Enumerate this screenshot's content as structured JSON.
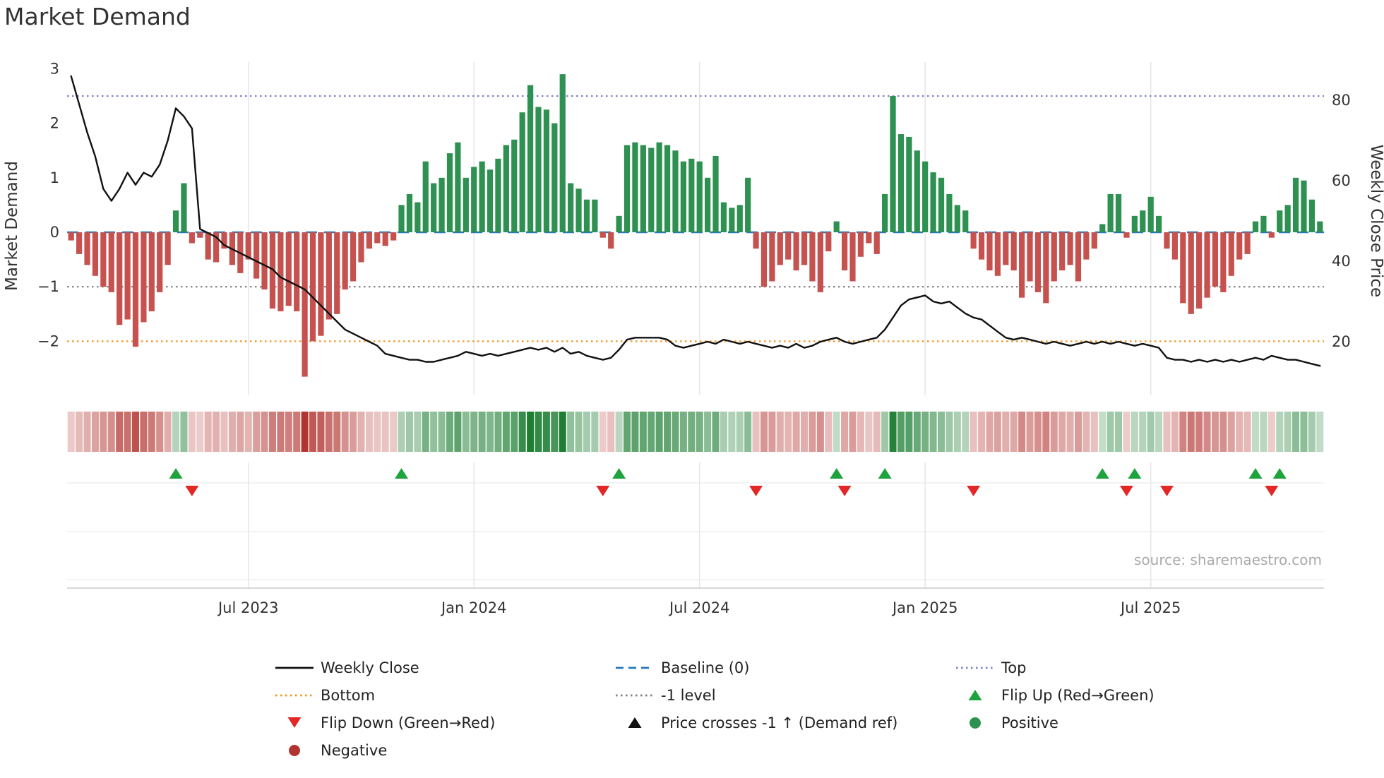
{
  "title": "Market Demand",
  "source_text": "source: sharemaestro.com",
  "axes": {
    "left_label": "Market Demand",
    "right_label": "Weekly Close Price",
    "left_ticks": [
      {
        "label": "3",
        "value": 3
      },
      {
        "label": "2",
        "value": 2
      },
      {
        "label": "1",
        "value": 1
      },
      {
        "label": "0",
        "value": 0
      },
      {
        "label": "−1",
        "value": -1
      },
      {
        "label": "−2",
        "value": -2
      }
    ],
    "right_ticks": [
      {
        "label": "80",
        "value": 80
      },
      {
        "label": "60",
        "value": 60
      },
      {
        "label": "40",
        "value": 40
      },
      {
        "label": "20",
        "value": 20
      }
    ],
    "x_ticks": [
      {
        "label": "Jul 2023",
        "index": 22
      },
      {
        "label": "Jan 2024",
        "index": 50
      },
      {
        "label": "Jul 2024",
        "index": 78
      },
      {
        "label": "Jan 2025",
        "index": 106
      },
      {
        "label": "Jul 2025",
        "index": 134
      }
    ]
  },
  "reference_lines": [
    {
      "name": "top",
      "label": "Top",
      "value": 2.5,
      "color": "#7b80cf",
      "dash": "2.5 4.5",
      "width": 2.2
    },
    {
      "name": "minus-one",
      "label": "-1 level",
      "value": -1,
      "color": "#7f7f7f",
      "dash": "2.5 4.5",
      "width": 2.2
    },
    {
      "name": "bottom",
      "label": "Bottom",
      "value": -2,
      "color": "#f5941e",
      "dash": "2.5 4.5",
      "width": 2.2
    },
    {
      "name": "baseline",
      "label": "Baseline (0)",
      "value": 0,
      "color": "#2878b8",
      "dash": "16 10",
      "width": 2.4
    }
  ],
  "colors": {
    "positive_bar": "#2e9151",
    "negative_bar": "#c5524f",
    "close_line": "#111111",
    "flip_up": "#1fa33c",
    "flip_down": "#e32726",
    "grid": "#e6e6e6",
    "axis_text": "#333333",
    "source_text": "#a9a9a9",
    "heat_green": [
      30,
      126,
      52
    ],
    "heat_red": [
      178,
      52,
      48
    ]
  },
  "legend": {
    "items": [
      {
        "label": "Weekly Close",
        "swatch": "line",
        "dash": "solid",
        "color": "#111111",
        "icon": "weekly-close-line-icon"
      },
      {
        "label": "Baseline (0)",
        "swatch": "line",
        "dash": "dashed",
        "color": "#2878b8",
        "icon": "baseline-line-icon"
      },
      {
        "label": "Top",
        "swatch": "line",
        "dash": "dotted",
        "color": "#7b80cf",
        "icon": "top-line-icon"
      },
      {
        "label": "Bottom",
        "swatch": "line",
        "dash": "dotted",
        "color": "#f5941e",
        "icon": "bottom-line-icon"
      },
      {
        "label": "-1 level",
        "swatch": "line",
        "dash": "dotted",
        "color": "#7f7f7f",
        "icon": "minus-one-line-icon"
      },
      {
        "label": "Flip Up (Red→Green)",
        "swatch": "triangle-up",
        "color": "#1fa33c",
        "icon": "flip-up-triangle-icon"
      },
      {
        "label": "Flip Down (Green→Red)",
        "swatch": "triangle-down",
        "color": "#e32726",
        "icon": "flip-down-triangle-icon"
      },
      {
        "label": "Price crosses -1 ↑ (Demand ref)",
        "swatch": "triangle-up",
        "color": "#111111",
        "icon": "price-cross-triangle-icon"
      },
      {
        "label": "Positive",
        "swatch": "circle",
        "color": "#2e9151",
        "icon": "positive-dot-icon"
      },
      {
        "label": "Negative",
        "swatch": "circle",
        "color": "#b23430",
        "icon": "negative-dot-icon"
      }
    ]
  },
  "chart_data": {
    "type": "bar",
    "title": "Market Demand",
    "x_unit": "week",
    "ylabel_left": "Market Demand",
    "ylabel_right": "Weekly Close Price",
    "left_ylim": [
      -3,
      3.1
    ],
    "right_ylim": [
      6,
      93
    ],
    "grid": "vertical-only",
    "legend_position": "bottom",
    "demand": [
      -0.15,
      -0.4,
      -0.6,
      -0.8,
      -1.0,
      -1.1,
      -1.7,
      -1.6,
      -2.1,
      -1.65,
      -1.45,
      -1.1,
      -0.6,
      0.4,
      0.9,
      -0.2,
      -0.1,
      -0.5,
      -0.55,
      -0.3,
      -0.6,
      -0.75,
      -0.5,
      -0.85,
      -1.05,
      -1.4,
      -1.45,
      -1.35,
      -1.45,
      -2.65,
      -2.0,
      -1.9,
      -1.6,
      -1.5,
      -1.05,
      -0.9,
      -0.55,
      -0.3,
      -0.2,
      -0.25,
      -0.15,
      0.5,
      0.7,
      0.55,
      1.3,
      0.9,
      1.0,
      1.45,
      1.65,
      1.0,
      1.2,
      1.3,
      1.15,
      1.35,
      1.6,
      1.7,
      2.2,
      2.7,
      2.3,
      2.25,
      2.0,
      2.9,
      0.9,
      0.8,
      0.6,
      0.6,
      -0.1,
      -0.3,
      0.3,
      1.6,
      1.65,
      1.6,
      1.55,
      1.65,
      1.6,
      1.5,
      1.3,
      1.35,
      1.3,
      1.0,
      1.4,
      0.55,
      0.45,
      0.5,
      1.0,
      -0.3,
      -1.0,
      -0.9,
      -0.6,
      -0.5,
      -0.7,
      -0.6,
      -0.9,
      -1.1,
      -0.35,
      0.2,
      -0.7,
      -0.9,
      -0.45,
      -0.2,
      -0.4,
      0.7,
      2.5,
      1.8,
      1.75,
      1.5,
      1.3,
      1.1,
      1.0,
      0.7,
      0.5,
      0.4,
      -0.3,
      -0.5,
      -0.7,
      -0.8,
      -0.6,
      -0.7,
      -1.2,
      -0.9,
      -1.1,
      -1.3,
      -0.9,
      -0.7,
      -0.6,
      -0.9,
      -0.5,
      -0.3,
      0.15,
      0.7,
      0.7,
      -0.1,
      0.3,
      0.4,
      0.65,
      0.3,
      -0.3,
      -0.5,
      -1.3,
      -1.5,
      -1.4,
      -1.2,
      -1.0,
      -1.1,
      -0.8,
      -0.5,
      -0.4,
      0.2,
      0.3,
      -0.1,
      0.4,
      0.5,
      1.0,
      0.95,
      0.6,
      0.2
    ],
    "weekly_close": [
      86,
      79,
      72,
      66,
      58,
      55,
      58,
      62,
      59,
      62,
      61,
      64,
      70,
      78,
      76,
      73,
      48,
      47,
      46,
      44,
      43,
      42,
      41,
      40,
      39,
      38,
      36,
      35,
      34,
      33,
      31,
      29,
      27,
      25,
      23,
      22,
      21,
      20,
      19,
      17,
      16.5,
      16,
      15.5,
      15.5,
      15,
      15,
      15.5,
      16,
      16.5,
      17.5,
      17,
      16.5,
      17,
      16.5,
      17,
      17.5,
      18,
      18.5,
      18,
      18.5,
      17.5,
      18.5,
      17,
      17.5,
      16.5,
      16,
      15.5,
      16,
      18,
      20.5,
      21,
      21,
      21,
      21,
      20.5,
      19,
      18.5,
      19,
      19.5,
      20,
      19.5,
      20.5,
      20,
      19.5,
      20,
      19.5,
      19,
      18.5,
      19,
      18.5,
      19.5,
      18.5,
      19,
      20,
      20.5,
      21,
      20,
      19.5,
      20,
      20.5,
      21,
      23,
      26,
      29,
      30.5,
      31,
      31.5,
      30,
      29.5,
      30,
      28.5,
      27,
      26,
      25.5,
      24,
      22.5,
      21,
      20.5,
      21,
      20.5,
      20,
      19.5,
      20,
      19.5,
      19,
      19.5,
      20,
      19.5,
      20,
      19.5,
      20,
      19.5,
      19,
      19.5,
      19,
      18.5,
      16,
      15.5,
      15.5,
      15,
      15.5,
      15,
      15.5,
      15,
      15.5,
      15,
      15.5,
      16,
      15.5,
      16.5,
      16,
      15.5,
      15.5,
      15,
      14.5,
      14
    ],
    "flip_up_indices": [
      13,
      41,
      68,
      95,
      101,
      128,
      132,
      147,
      150
    ],
    "flip_down_indices": [
      15,
      66,
      85,
      96,
      112,
      131,
      136,
      149
    ],
    "price_cross_up_indices": []
  }
}
